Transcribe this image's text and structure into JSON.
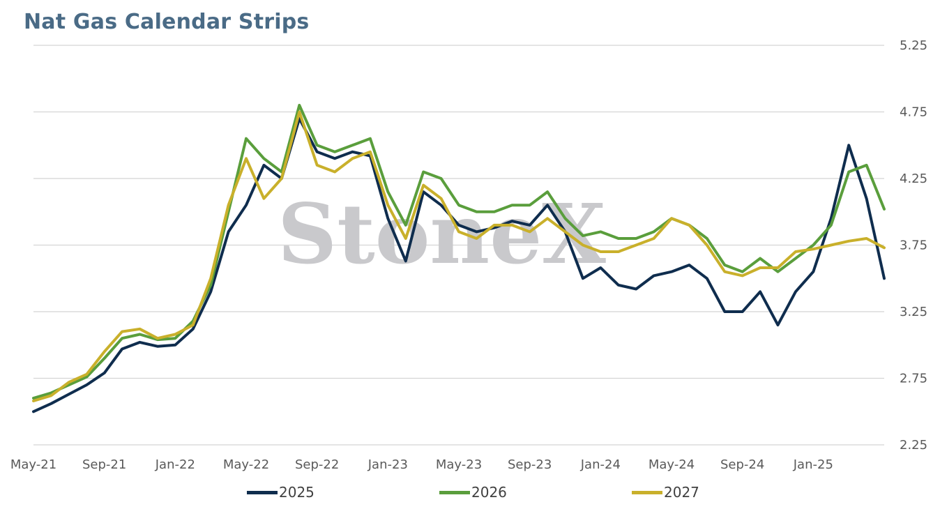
{
  "chart_data": {
    "type": "line",
    "title": "Nat Gas Calendar Strips",
    "xlabel": "",
    "ylabel": "",
    "x_ticks": [
      "May-21",
      "Sep-21",
      "Jan-22",
      "May-22",
      "Sep-22",
      "Jan-23",
      "May-23",
      "Sep-23",
      "Jan-24",
      "May-24",
      "Sep-24",
      "Jan-25"
    ],
    "y_ticks": [
      "5.25",
      "4.75",
      "4.25",
      "3.75",
      "3.25",
      "2.75",
      "2.25"
    ],
    "ylim": [
      2.25,
      5.25
    ],
    "xlim": [
      "May-21",
      "May-25"
    ],
    "y_axis_position": "right",
    "grid": true,
    "legend_position": "bottom",
    "watermark": "StoneX",
    "series": [
      {
        "name": "2025",
        "color": "#0f2d4e",
        "points": [
          [
            "May-21",
            2.5
          ],
          [
            "Jun-21",
            2.56
          ],
          [
            "Jul-21",
            2.63
          ],
          [
            "Aug-21",
            2.7
          ],
          [
            "Sep-21",
            2.79
          ],
          [
            "Oct-21",
            2.97
          ],
          [
            "Nov-21",
            3.02
          ],
          [
            "Dec-21",
            2.99
          ],
          [
            "Jan-22",
            3.0
          ],
          [
            "Feb-22",
            3.12
          ],
          [
            "Mar-22",
            3.4
          ],
          [
            "Apr-22",
            3.85
          ],
          [
            "May-22",
            4.05
          ],
          [
            "Jun-22",
            4.35
          ],
          [
            "Jul-22",
            4.25
          ],
          [
            "Aug-22",
            4.7
          ],
          [
            "Sep-22",
            4.45
          ],
          [
            "Oct-22",
            4.4
          ],
          [
            "Nov-22",
            4.45
          ],
          [
            "Dec-22",
            4.42
          ],
          [
            "Jan-23",
            3.95
          ],
          [
            "Feb-23",
            3.63
          ],
          [
            "Mar-23",
            4.15
          ],
          [
            "Apr-23",
            4.05
          ],
          [
            "May-23",
            3.9
          ],
          [
            "Jun-23",
            3.85
          ],
          [
            "Jul-23",
            3.88
          ],
          [
            "Aug-23",
            3.93
          ],
          [
            "Sep-23",
            3.9
          ],
          [
            "Oct-23",
            4.05
          ],
          [
            "Nov-23",
            3.85
          ],
          [
            "Dec-23",
            3.5
          ],
          [
            "Jan-24",
            3.58
          ],
          [
            "Feb-24",
            3.45
          ],
          [
            "Mar-24",
            3.42
          ],
          [
            "Apr-24",
            3.52
          ],
          [
            "May-24",
            3.55
          ],
          [
            "Jun-24",
            3.6
          ],
          [
            "Jul-24",
            3.5
          ],
          [
            "Aug-24",
            3.25
          ],
          [
            "Sep-24",
            3.25
          ],
          [
            "Oct-24",
            3.4
          ],
          [
            "Nov-24",
            3.15
          ],
          [
            "Dec-24",
            3.4
          ],
          [
            "Jan-25",
            3.55
          ],
          [
            "Feb-25",
            3.95
          ],
          [
            "Mar-25",
            4.5
          ],
          [
            "Apr-25",
            4.1
          ],
          [
            "May-25",
            3.5
          ]
        ]
      },
      {
        "name": "2026",
        "color": "#5a9e3c",
        "points": [
          [
            "May-21",
            2.6
          ],
          [
            "Jun-21",
            2.64
          ],
          [
            "Jul-21",
            2.7
          ],
          [
            "Aug-21",
            2.76
          ],
          [
            "Sep-21",
            2.9
          ],
          [
            "Oct-21",
            3.05
          ],
          [
            "Nov-21",
            3.08
          ],
          [
            "Dec-21",
            3.04
          ],
          [
            "Jan-22",
            3.05
          ],
          [
            "Feb-22",
            3.18
          ],
          [
            "Mar-22",
            3.45
          ],
          [
            "Apr-22",
            4.0
          ],
          [
            "May-22",
            4.55
          ],
          [
            "Jun-22",
            4.4
          ],
          [
            "Jul-22",
            4.3
          ],
          [
            "Aug-22",
            4.8
          ],
          [
            "Sep-22",
            4.5
          ],
          [
            "Oct-22",
            4.45
          ],
          [
            "Nov-22",
            4.5
          ],
          [
            "Dec-22",
            4.55
          ],
          [
            "Jan-23",
            4.15
          ],
          [
            "Feb-23",
            3.9
          ],
          [
            "Mar-23",
            4.3
          ],
          [
            "Apr-23",
            4.25
          ],
          [
            "May-23",
            4.05
          ],
          [
            "Jun-23",
            4.0
          ],
          [
            "Jul-23",
            4.0
          ],
          [
            "Aug-23",
            4.05
          ],
          [
            "Sep-23",
            4.05
          ],
          [
            "Oct-23",
            4.15
          ],
          [
            "Nov-23",
            3.95
          ],
          [
            "Dec-23",
            3.82
          ],
          [
            "Jan-24",
            3.85
          ],
          [
            "Feb-24",
            3.8
          ],
          [
            "Mar-24",
            3.8
          ],
          [
            "Apr-24",
            3.85
          ],
          [
            "May-24",
            3.95
          ],
          [
            "Jun-24",
            3.9
          ],
          [
            "Jul-24",
            3.8
          ],
          [
            "Aug-24",
            3.6
          ],
          [
            "Sep-24",
            3.55
          ],
          [
            "Oct-24",
            3.65
          ],
          [
            "Nov-24",
            3.55
          ],
          [
            "Dec-24",
            3.65
          ],
          [
            "Jan-25",
            3.75
          ],
          [
            "Feb-25",
            3.9
          ],
          [
            "Mar-25",
            4.3
          ],
          [
            "Apr-25",
            4.35
          ],
          [
            "May-25",
            4.02
          ]
        ]
      },
      {
        "name": "2027",
        "color": "#c9b02b",
        "points": [
          [
            "May-21",
            2.58
          ],
          [
            "Jun-21",
            2.62
          ],
          [
            "Jul-21",
            2.72
          ],
          [
            "Aug-21",
            2.78
          ],
          [
            "Sep-21",
            2.95
          ],
          [
            "Oct-21",
            3.1
          ],
          [
            "Nov-21",
            3.12
          ],
          [
            "Dec-21",
            3.05
          ],
          [
            "Jan-22",
            3.08
          ],
          [
            "Feb-22",
            3.15
          ],
          [
            "Mar-22",
            3.5
          ],
          [
            "Apr-22",
            4.05
          ],
          [
            "May-22",
            4.4
          ],
          [
            "Jun-22",
            4.1
          ],
          [
            "Jul-22",
            4.25
          ],
          [
            "Aug-22",
            4.75
          ],
          [
            "Sep-22",
            4.35
          ],
          [
            "Oct-22",
            4.3
          ],
          [
            "Nov-22",
            4.4
          ],
          [
            "Dec-22",
            4.45
          ],
          [
            "Jan-23",
            4.05
          ],
          [
            "Feb-23",
            3.8
          ],
          [
            "Mar-23",
            4.2
          ],
          [
            "Apr-23",
            4.1
          ],
          [
            "May-23",
            3.85
          ],
          [
            "Jun-23",
            3.8
          ],
          [
            "Jul-23",
            3.9
          ],
          [
            "Aug-23",
            3.9
          ],
          [
            "Sep-23",
            3.85
          ],
          [
            "Oct-23",
            3.95
          ],
          [
            "Nov-23",
            3.85
          ],
          [
            "Dec-23",
            3.75
          ],
          [
            "Jan-24",
            3.7
          ],
          [
            "Feb-24",
            3.7
          ],
          [
            "Mar-24",
            3.75
          ],
          [
            "Apr-24",
            3.8
          ],
          [
            "May-24",
            3.95
          ],
          [
            "Jun-24",
            3.9
          ],
          [
            "Jul-24",
            3.75
          ],
          [
            "Aug-24",
            3.55
          ],
          [
            "Sep-24",
            3.52
          ],
          [
            "Oct-24",
            3.58
          ],
          [
            "Nov-24",
            3.58
          ],
          [
            "Dec-24",
            3.7
          ],
          [
            "Jan-25",
            3.72
          ],
          [
            "Feb-25",
            3.75
          ],
          [
            "Mar-25",
            3.78
          ],
          [
            "Apr-25",
            3.8
          ],
          [
            "May-25",
            3.73
          ]
        ]
      }
    ]
  }
}
